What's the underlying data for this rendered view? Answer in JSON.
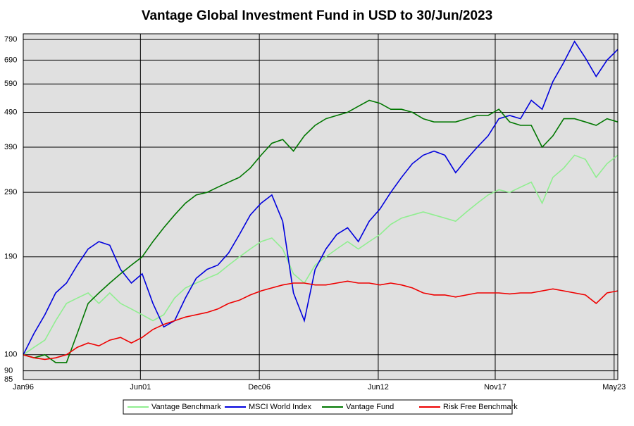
{
  "chart_data": {
    "type": "line",
    "title": "Vantage Global Investment Fund in USD to 30/Jun/2023",
    "x": [
      1996.0,
      1996.5,
      1997.0,
      1997.5,
      1998.0,
      1998.5,
      1999.0,
      1999.5,
      2000.0,
      2000.5,
      2001.0,
      2001.5,
      2002.0,
      2002.5,
      2003.0,
      2003.5,
      2004.0,
      2004.5,
      2005.0,
      2005.5,
      2006.0,
      2006.5,
      2007.0,
      2007.5,
      2008.0,
      2008.5,
      2009.0,
      2009.5,
      2010.0,
      2010.5,
      2011.0,
      2011.5,
      2012.0,
      2012.5,
      2013.0,
      2013.5,
      2014.0,
      2014.5,
      2015.0,
      2015.5,
      2016.0,
      2016.5,
      2017.0,
      2017.5,
      2018.0,
      2018.5,
      2019.0,
      2019.5,
      2020.0,
      2020.5,
      2021.0,
      2021.5,
      2022.0,
      2022.5,
      2023.0,
      2023.5
    ],
    "series": [
      {
        "name": "Vantage Benchmark",
        "color": "#90ee90",
        "values": [
          100,
          105,
          110,
          125,
          140,
          145,
          150,
          140,
          150,
          140,
          135,
          130,
          125,
          130,
          145,
          155,
          160,
          165,
          170,
          180,
          190,
          200,
          210,
          215,
          200,
          170,
          160,
          180,
          190,
          200,
          210,
          200,
          210,
          220,
          235,
          245,
          250,
          255,
          250,
          245,
          240,
          255,
          270,
          285,
          295,
          290,
          300,
          310,
          270,
          320,
          340,
          370,
          360,
          320,
          350,
          370
        ]
      },
      {
        "name": "MSCI World Index",
        "color": "#0000dd",
        "values": [
          100,
          115,
          130,
          150,
          160,
          180,
          200,
          210,
          205,
          175,
          160,
          170,
          140,
          120,
          125,
          145,
          165,
          175,
          180,
          195,
          220,
          250,
          270,
          285,
          240,
          150,
          125,
          175,
          200,
          220,
          230,
          210,
          240,
          260,
          290,
          320,
          350,
          370,
          380,
          370,
          330,
          360,
          390,
          420,
          470,
          480,
          470,
          530,
          500,
          600,
          680,
          780,
          700,
          620,
          690,
          740
        ]
      },
      {
        "name": "Vantage Fund",
        "color": "#007700",
        "values": [
          100,
          98,
          100,
          95,
          95,
          115,
          140,
          150,
          160,
          170,
          180,
          190,
          210,
          230,
          250,
          270,
          285,
          290,
          300,
          310,
          320,
          340,
          370,
          400,
          410,
          380,
          420,
          450,
          470,
          480,
          490,
          510,
          530,
          520,
          500,
          500,
          490,
          470,
          460,
          460,
          460,
          470,
          480,
          480,
          500,
          460,
          450,
          450,
          390,
          420,
          470,
          470,
          460,
          450,
          470,
          460
        ]
      },
      {
        "name": "Risk Free Benchmark",
        "color": "#ee0000",
        "values": [
          100,
          98,
          97,
          98,
          100,
          105,
          108,
          106,
          110,
          112,
          108,
          112,
          118,
          122,
          125,
          128,
          130,
          132,
          135,
          140,
          143,
          148,
          152,
          155,
          158,
          160,
          160,
          158,
          158,
          160,
          162,
          160,
          160,
          158,
          160,
          158,
          155,
          150,
          148,
          148,
          146,
          148,
          150,
          150,
          150,
          149,
          150,
          150,
          152,
          154,
          152,
          150,
          148,
          140,
          150,
          152
        ]
      }
    ],
    "xlim": [
      1996.0,
      2023.5
    ],
    "xticks": [
      {
        "value": 1996.0,
        "label": "Jan96"
      },
      {
        "value": 2001.42,
        "label": "Jun01"
      },
      {
        "value": 2006.92,
        "label": "Dec06"
      },
      {
        "value": 2012.42,
        "label": "Jun12"
      },
      {
        "value": 2017.83,
        "label": "Nov17"
      },
      {
        "value": 2023.33,
        "label": "May23"
      }
    ],
    "ylim": [
      85,
      820
    ],
    "yticks": [
      85,
      90,
      100,
      190,
      290,
      390,
      490,
      590,
      690,
      790
    ],
    "log_y": true,
    "grid": true,
    "legend": "bottom"
  }
}
